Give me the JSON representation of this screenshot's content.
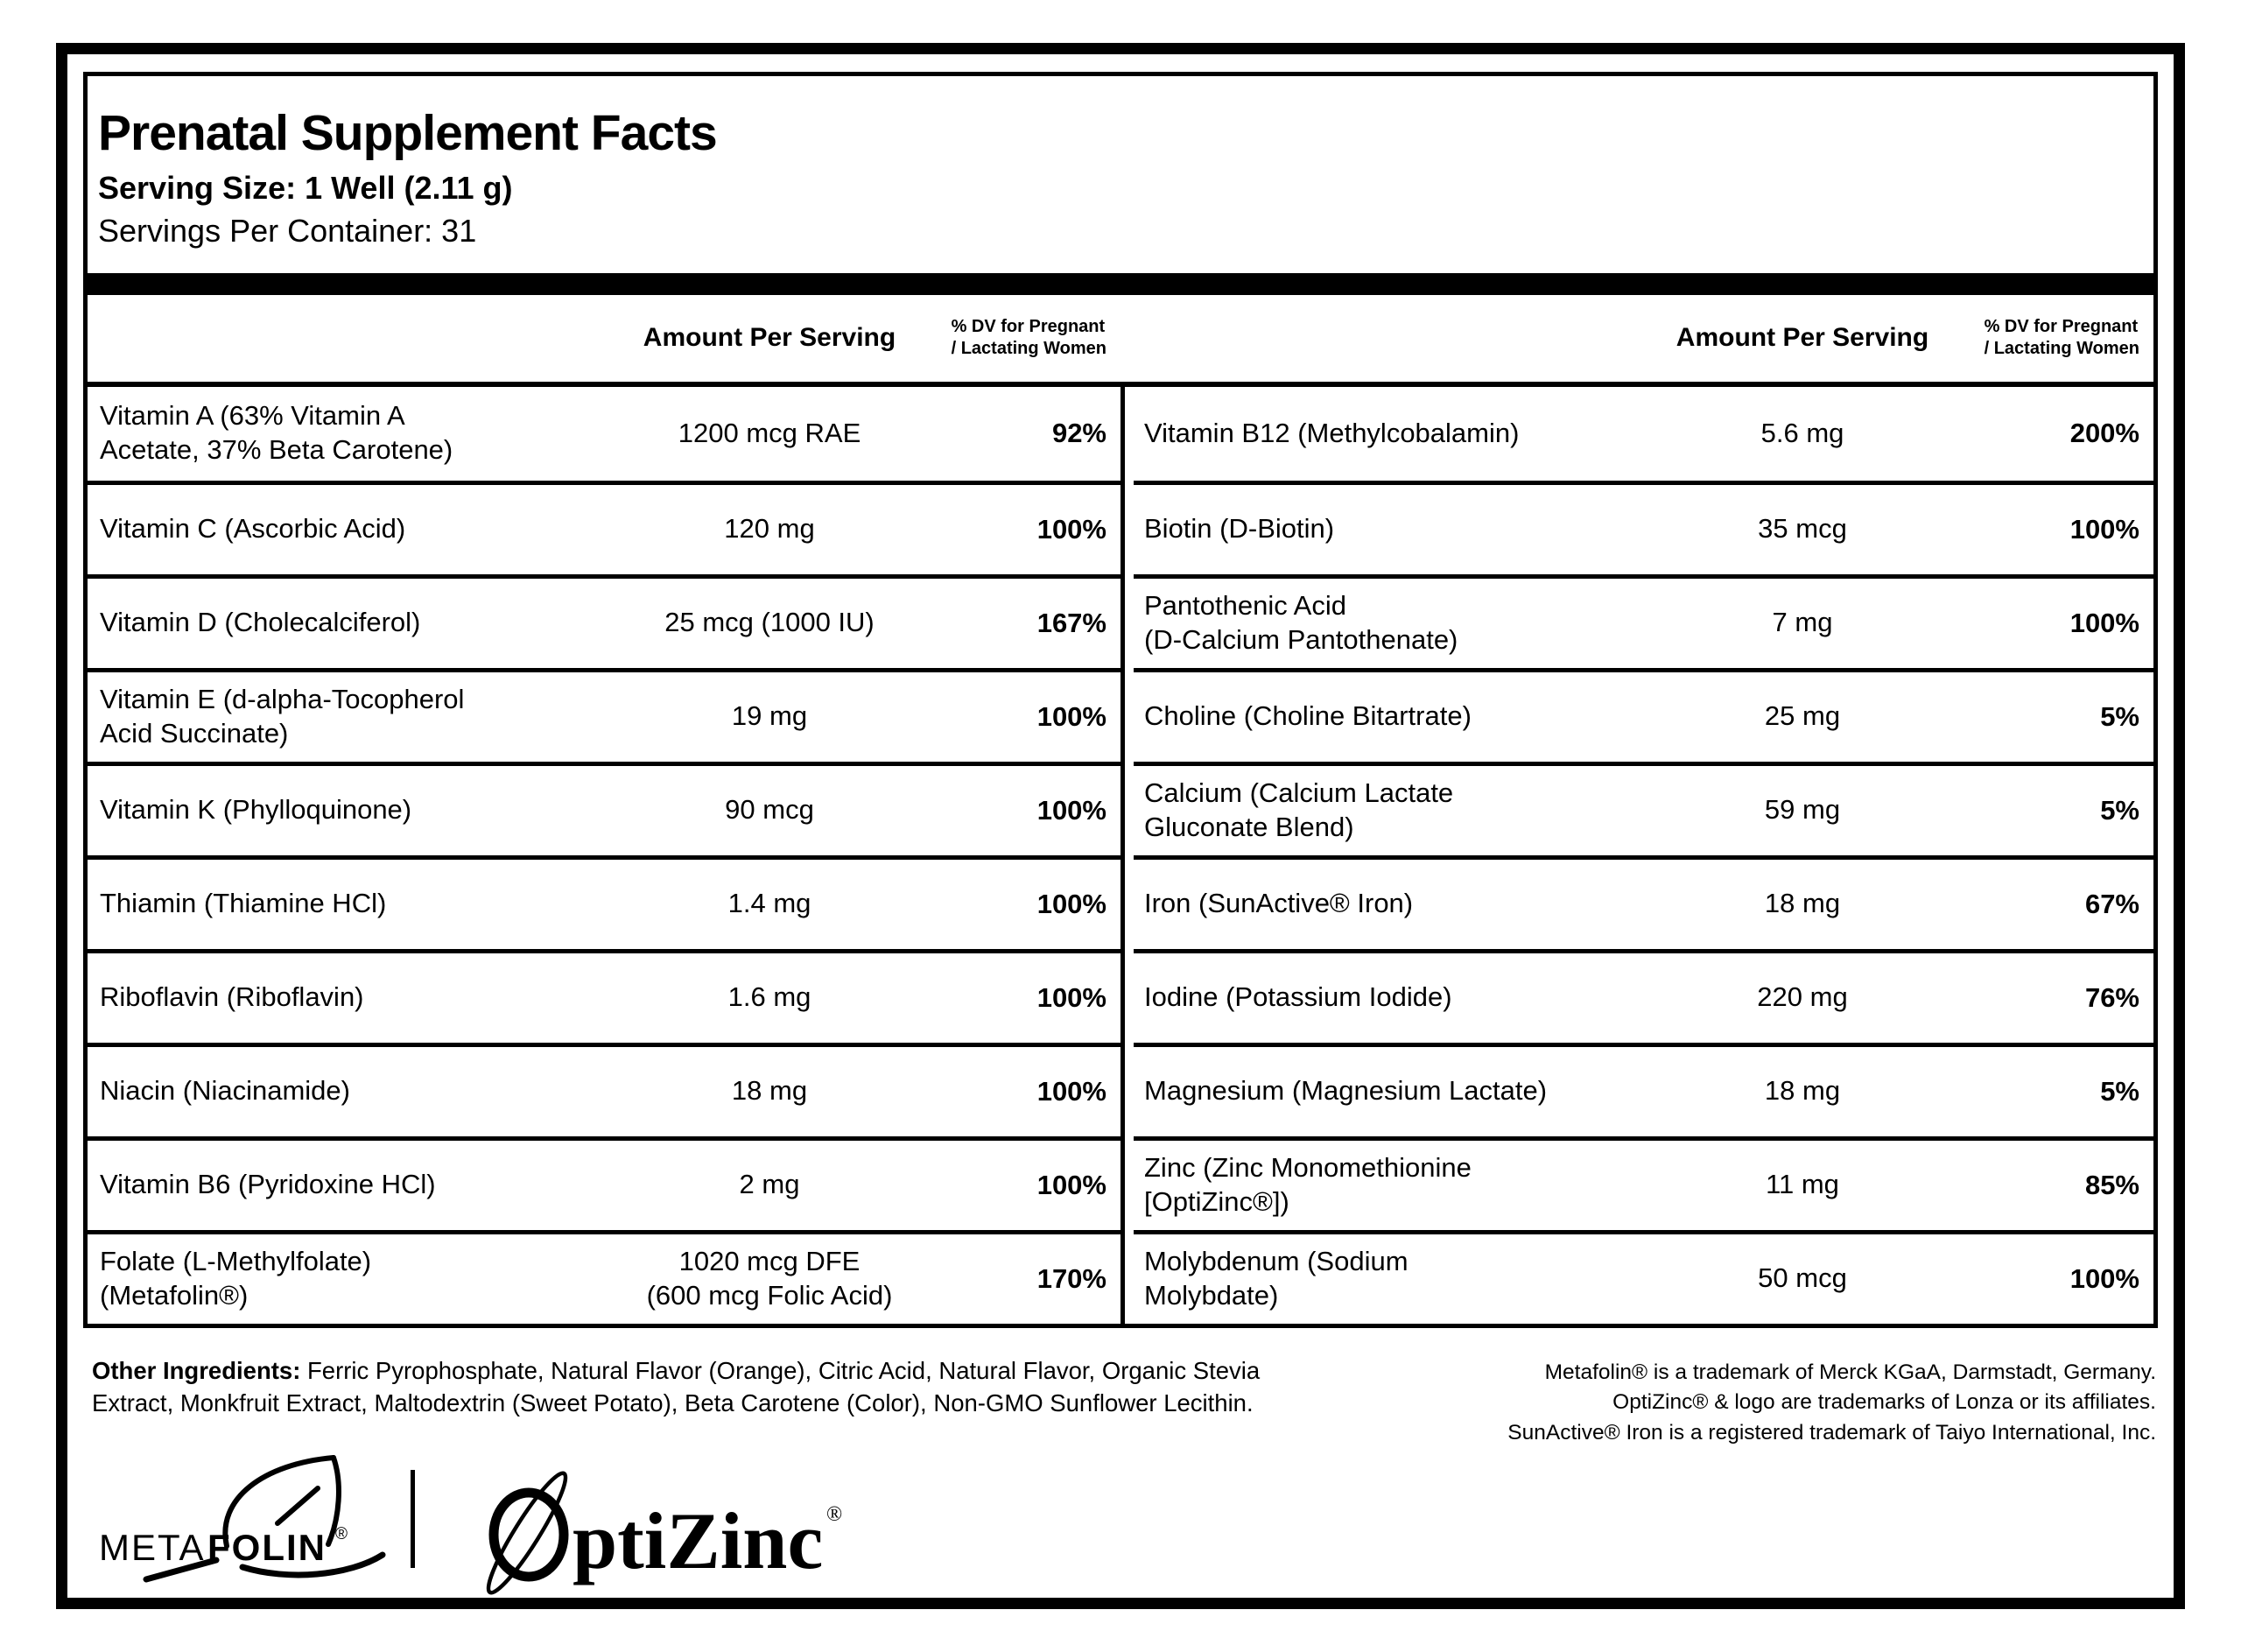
{
  "title": "Prenatal Supplement Facts",
  "serving_size": "Serving Size: 1 Well (2.11 g)",
  "servings_per_container": "Servings Per Container: 31",
  "columns": {
    "amount": "Amount Per Serving",
    "dv": "% DV for Pregnant\n/ Lactating Women"
  },
  "left_rows": [
    {
      "name": "Vitamin A (63% Vitamin A\nAcetate, 37% Beta Carotene)",
      "amount": "1200 mcg RAE",
      "dv": "92%"
    },
    {
      "name": "Vitamin C (Ascorbic Acid)",
      "amount": "120 mg",
      "dv": "100%"
    },
    {
      "name": "Vitamin D (Cholecalciferol)",
      "amount": "25 mcg (1000 IU)",
      "dv": "167%"
    },
    {
      "name": "Vitamin E (d-alpha-Tocopherol\nAcid Succinate)",
      "amount": "19 mg",
      "dv": "100%"
    },
    {
      "name": "Vitamin K (Phylloquinone)",
      "amount": "90 mcg",
      "dv": "100%"
    },
    {
      "name": "Thiamin (Thiamine HCl)",
      "amount": "1.4 mg",
      "dv": "100%"
    },
    {
      "name": "Riboflavin (Riboflavin)",
      "amount": "1.6 mg",
      "dv": "100%"
    },
    {
      "name": "Niacin (Niacinamide)",
      "amount": "18 mg",
      "dv": "100%"
    },
    {
      "name": "Vitamin B6 (Pyridoxine HCl)",
      "amount": "2 mg",
      "dv": "100%"
    },
    {
      "name": "Folate (L-Methylfolate)\n(Metafolin®)",
      "amount": "1020 mcg DFE\n(600 mcg Folic Acid)",
      "dv": "170%"
    }
  ],
  "right_rows": [
    {
      "name": "Vitamin B12 (Methylcobalamin)",
      "amount": "5.6 mg",
      "dv": "200%"
    },
    {
      "name": "Biotin (D-Biotin)",
      "amount": "35 mcg",
      "dv": "100%"
    },
    {
      "name": "Pantothenic Acid\n(D-Calcium Pantothenate)",
      "amount": "7 mg",
      "dv": "100%"
    },
    {
      "name": "Choline (Choline Bitartrate)",
      "amount": "25 mg",
      "dv": "5%"
    },
    {
      "name": "Calcium (Calcium Lactate\nGluconate Blend)",
      "amount": "59 mg",
      "dv": "5%"
    },
    {
      "name": "Iron (SunActive® Iron)",
      "amount": "18 mg",
      "dv": "67%"
    },
    {
      "name": "Iodine (Potassium Iodide)",
      "amount": "220 mg",
      "dv": "76%"
    },
    {
      "name": "Magnesium (Magnesium Lactate)",
      "amount": "18 mg",
      "dv": "5%"
    },
    {
      "name": "Zinc (Zinc Monomethionine\n[OptiZinc®])",
      "amount": "11 mg",
      "dv": "85%"
    },
    {
      "name": "Molybdenum (Sodium\nMolybdate)",
      "amount": "50 mcg",
      "dv": "100%"
    }
  ],
  "other_ingredients": {
    "label": "Other Ingredients:",
    "text": " Ferric Pyrophosphate, Natural Flavor (Orange), Citric Acid, Natural Flavor, Organic Stevia\nExtract, Monkfruit Extract, Maltodextrin (Sweet Potato), Beta Carotene (Color), Non-GMO Sunflower Lecithin."
  },
  "trademarks": "Metafolin® is a trademark of Merck KGaA, Darmstadt, Germany.\nOptiZinc® & logo are trademarks of Lonza or its affiliates.\nSunActive® Iron is a registered trademark of Taiyo International, Inc.",
  "logos": {
    "metafolin_meta": "META",
    "metafolin_folin": "FOLIN",
    "metafolin_reg": "®",
    "optizinc_text": "ptiZinc",
    "optizinc_reg": "®"
  },
  "colors": {
    "ink": "#000000",
    "paper": "#ffffff"
  }
}
